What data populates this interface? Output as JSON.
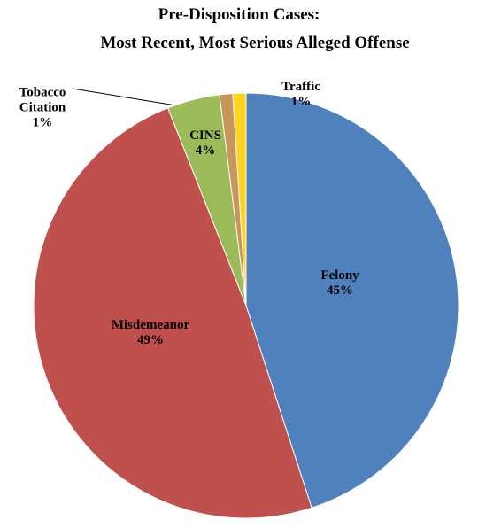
{
  "chart_data": {
    "type": "pie",
    "title": [
      "Pre-Disposition Cases:",
      "Most Recent, Most Serious Alleged Offense"
    ],
    "categories": [
      "Felony",
      "Misdemeanor",
      "CINS",
      "Tobacco Citation",
      "Traffic"
    ],
    "values": [
      45,
      49,
      4,
      1,
      1
    ],
    "value_labels": [
      "45%",
      "49%",
      "4%",
      "1%",
      "1%"
    ],
    "colors": [
      "#4f81bd",
      "#c0504d",
      "#9bbb59",
      "#c8955a",
      "#ffd320"
    ]
  }
}
